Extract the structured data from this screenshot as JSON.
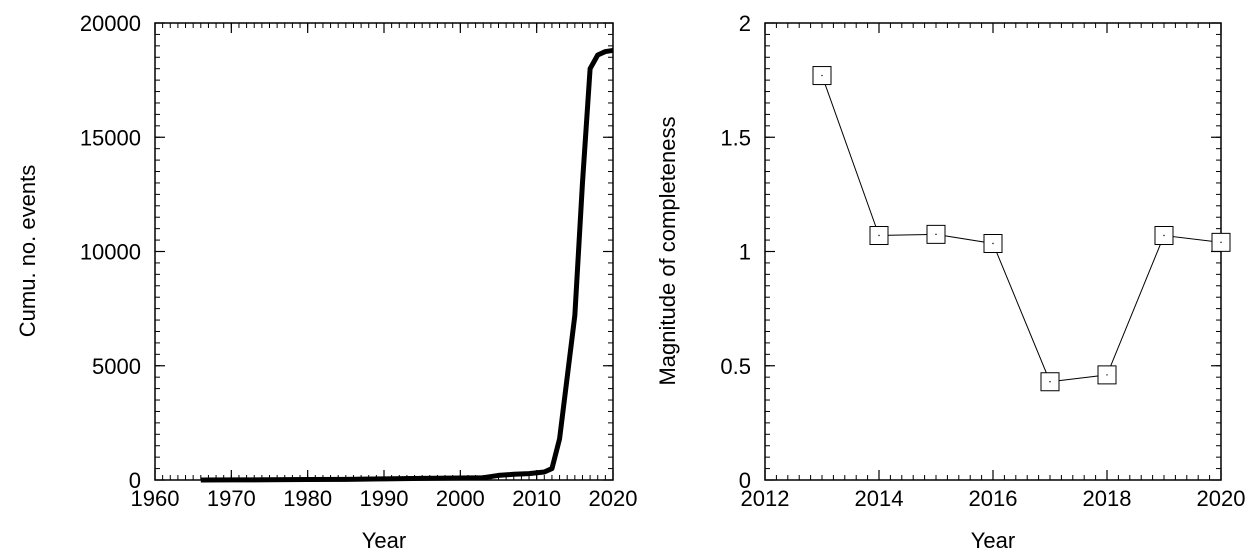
{
  "chart_data": [
    {
      "type": "line",
      "xlabel": "Year",
      "ylabel": "Cumu. no. events",
      "xlim": [
        1960,
        2020
      ],
      "ylim": [
        0,
        20000
      ],
      "xticks": [
        "1960",
        "1970",
        "1980",
        "1990",
        "2000",
        "2010",
        "2020"
      ],
      "yticks": [
        "0",
        "5000",
        "10000",
        "15000",
        "20000"
      ],
      "x": [
        1966,
        1970,
        1975,
        1980,
        1985,
        1990,
        1995,
        2000,
        2003,
        2005,
        2007,
        2009,
        2011,
        2012,
        2013,
        2014,
        2015,
        2016,
        2017,
        2018,
        2019,
        2020
      ],
      "values": [
        0,
        5,
        10,
        20,
        30,
        50,
        70,
        90,
        100,
        200,
        250,
        280,
        350,
        500,
        1800,
        4500,
        7200,
        13000,
        18000,
        18600,
        18750,
        18800
      ],
      "grid": false
    },
    {
      "type": "line",
      "xlabel": "Year",
      "ylabel": "Magnitude of completeness",
      "xlim": [
        2012,
        2020
      ],
      "ylim": [
        0,
        2
      ],
      "xticks": [
        "2012",
        "2014",
        "2016",
        "2018",
        "2020"
      ],
      "yticks": [
        "0",
        "0.5",
        "1",
        "1.5",
        "2"
      ],
      "x": [
        2013,
        2014,
        2015,
        2016,
        2017,
        2018,
        2019,
        2020
      ],
      "values": [
        1.77,
        1.07,
        1.075,
        1.035,
        0.43,
        0.46,
        1.07,
        1.04
      ],
      "marker": "square",
      "grid": false
    }
  ]
}
